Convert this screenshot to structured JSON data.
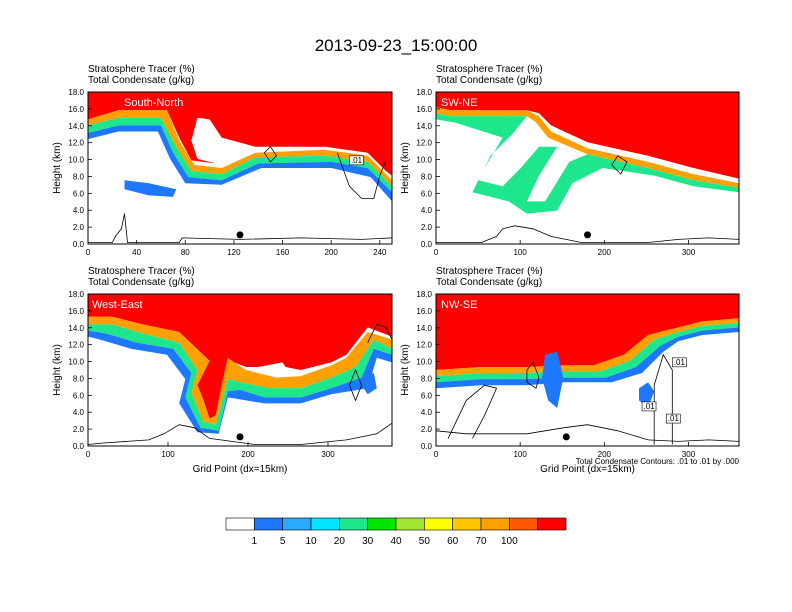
{
  "figure": {
    "title": "2013-09-23_15:00:00",
    "footnote": "Total Condensate Contours: .01 to .01 by .000",
    "colors": {
      "white": "#ffffff",
      "c1": "#1e78ff",
      "c5": "#28aaff",
      "c10": "#00e6ff",
      "c20": "#1ee68c",
      "c30": "#00e600",
      "c40": "#a0e632",
      "c50": "#ffff00",
      "c60": "#ffc800",
      "c70": "#ffa000",
      "c80": "#ff5a00",
      "c100": "#ff0000"
    }
  },
  "chart_data": [
    {
      "type": "cross-section",
      "panel": "South-North",
      "label": "South-North",
      "title_line1": "Stratosphere Tracer   (%)",
      "title_line2": "Total Condensate   (g/kg)",
      "ylabel": "Height (km)",
      "xlabel": "",
      "xlim": [
        0,
        250
      ],
      "xticks": [
        0,
        40,
        80,
        120,
        160,
        200,
        240
      ],
      "ylim": [
        0,
        18
      ],
      "yticks": [
        "0.0",
        "2.0",
        "4.0",
        "6.0",
        "8.0",
        "10.0",
        "12.0",
        "14.0",
        "16.0",
        "18.0"
      ],
      "contour_label": ".01"
    },
    {
      "type": "cross-section",
      "panel": "SW-NE",
      "label": "SW-NE",
      "title_line1": "Stratosphere Tracer   (%)",
      "title_line2": "Total Condensate   (g/kg)",
      "ylabel": "Height (km)",
      "xlabel": "",
      "xlim": [
        0,
        360
      ],
      "xticks": [
        0,
        100,
        200,
        300
      ],
      "ylim": [
        0,
        18
      ],
      "yticks": [
        "0.0",
        "2.0",
        "4.0",
        "6.0",
        "8.0",
        "10.0",
        "12.0",
        "14.0",
        "16.0",
        "18.0"
      ]
    },
    {
      "type": "cross-section",
      "panel": "West-East",
      "label": "West-East",
      "title_line1": "Stratosphere Tracer   (%)",
      "title_line2": "Total Condensate   (g/kg)",
      "ylabel": "Height (km)",
      "xlabel": "Grid Point (dx=15km)",
      "xlim": [
        0,
        380
      ],
      "xticks": [
        0,
        100,
        200,
        300
      ],
      "ylim": [
        0,
        18
      ],
      "yticks": [
        "0.0",
        "2.0",
        "4.0",
        "6.0",
        "8.0",
        "10.0",
        "12.0",
        "14.0",
        "16.0",
        "18.0"
      ]
    },
    {
      "type": "cross-section",
      "panel": "NW-SE",
      "label": "NW-SE",
      "title_line1": "Stratosphere Tracer   (%)",
      "title_line2": "Total Condensate   (g/kg)",
      "ylabel": "Height (km)",
      "xlabel": "Grid Point (dx=15km)",
      "xlim": [
        0,
        360
      ],
      "xticks": [
        0,
        100,
        200,
        300
      ],
      "ylim": [
        0,
        18
      ],
      "yticks": [
        "0.0",
        "2.0",
        "4.0",
        "6.0",
        "8.0",
        "10.0",
        "12.0",
        "14.0",
        "16.0",
        "18.0"
      ],
      "contour_labels": [
        ".01",
        ".01",
        ".01"
      ]
    }
  ],
  "legend": {
    "type": "colorbar",
    "labels": [
      "1",
      "5",
      "10",
      "20",
      "30",
      "40",
      "50",
      "60",
      "70",
      "100"
    ]
  }
}
